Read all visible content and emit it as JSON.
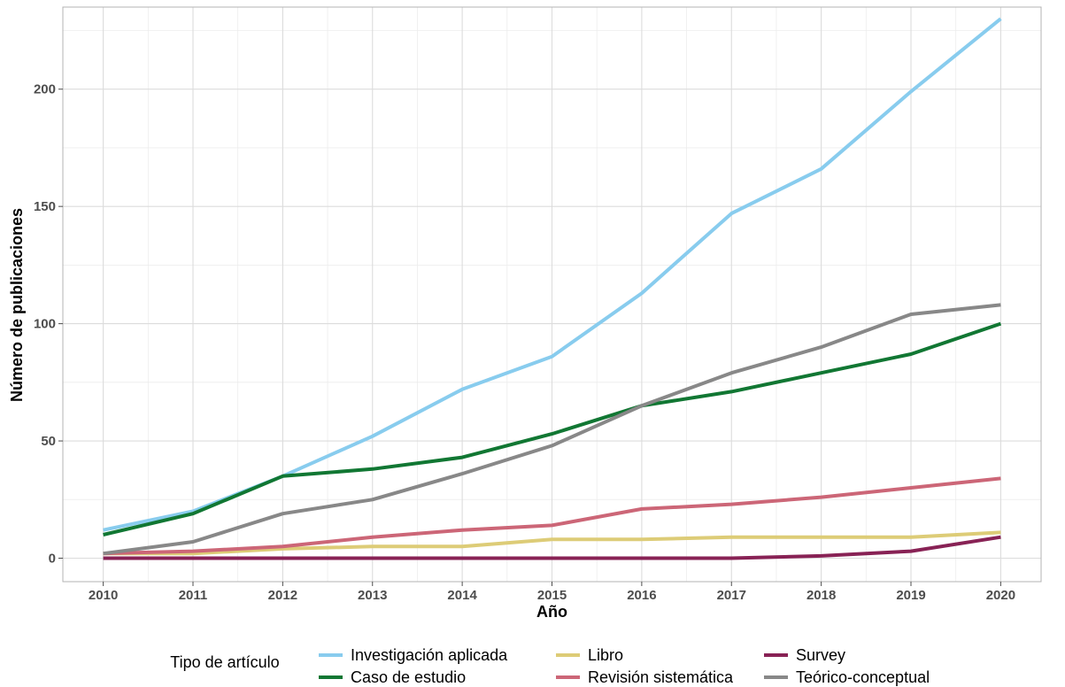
{
  "chart_data": {
    "type": "line",
    "title": "",
    "xlabel": "Año",
    "ylabel": "Número de publicaciones",
    "x": [
      2010,
      2011,
      2012,
      2013,
      2014,
      2015,
      2016,
      2017,
      2018,
      2019,
      2020
    ],
    "xlim": [
      2009.55,
      2020.45
    ],
    "ylim": [
      -10,
      235
    ],
    "yticks": [
      0,
      50,
      100,
      150,
      200
    ],
    "grid": true,
    "legend": {
      "title": "Tipo de artículo",
      "position": "bottom"
    },
    "series": [
      {
        "name": "Investigación aplicada",
        "color": "#88ccee",
        "values": [
          12,
          20,
          35,
          52,
          72,
          86,
          113,
          147,
          166,
          199,
          230
        ]
      },
      {
        "name": "Caso de estudio",
        "color": "#117733",
        "values": [
          10,
          19,
          35,
          38,
          43,
          53,
          65,
          71,
          79,
          87,
          100
        ]
      },
      {
        "name": "Libro",
        "color": "#ddcc77",
        "values": [
          2,
          2,
          4,
          5,
          5,
          8,
          8,
          9,
          9,
          9,
          11
        ]
      },
      {
        "name": "Revisión sistemática",
        "color": "#cc6677",
        "values": [
          2,
          3,
          5,
          9,
          12,
          14,
          21,
          23,
          26,
          30,
          34
        ]
      },
      {
        "name": "Survey",
        "color": "#882255",
        "values": [
          0,
          0,
          0,
          0,
          0,
          0,
          0,
          0,
          1,
          3,
          9
        ]
      },
      {
        "name": "Teórico-conceptual",
        "color": "#888888",
        "values": [
          2,
          7,
          19,
          25,
          36,
          48,
          65,
          79,
          90,
          104,
          108
        ]
      }
    ]
  }
}
